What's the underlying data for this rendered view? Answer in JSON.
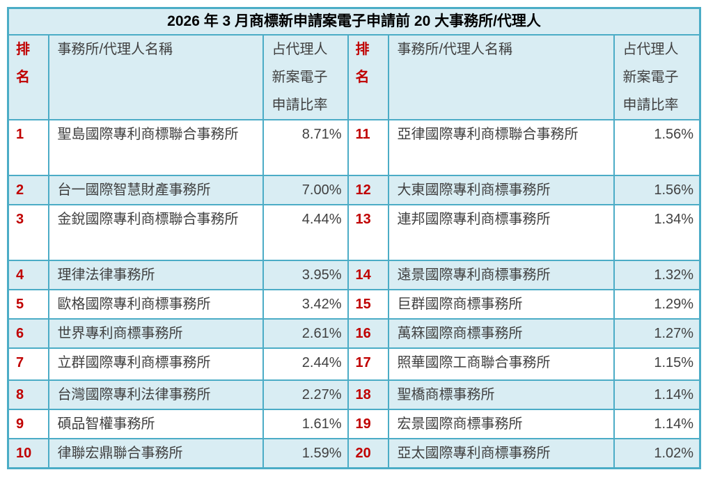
{
  "title": "2026 年 3 月商標新申請案電子申請前 20 大事務所/代理人",
  "header": {
    "rank": "排\n名",
    "name": "事務所/代理人名稱",
    "ratio": "占代理人\n新案電子\n申請比率"
  },
  "colors": {
    "border_teal": "#4bacc6",
    "band_blue": "#d9edf3",
    "rank_red": "#c00000",
    "body_text": "#404040"
  },
  "rows": [
    {
      "rank": "1",
      "name": "聖島國際專利商標聯合事務所",
      "ratio": "8.71%"
    },
    {
      "rank": "2",
      "name": "台一國際智慧財產事務所",
      "ratio": "7.00%"
    },
    {
      "rank": "3",
      "name": "金銳國際專利商標聯合事務所",
      "ratio": "4.44%"
    },
    {
      "rank": "4",
      "name": "理律法律事務所",
      "ratio": "3.95%"
    },
    {
      "rank": "5",
      "name": "歐格國際專利商標事務所",
      "ratio": "3.42%"
    },
    {
      "rank": "6",
      "name": "世界專利商標事務所",
      "ratio": "2.61%"
    },
    {
      "rank": "7",
      "name": "立群國際專利商標事務所",
      "ratio": "2.44%"
    },
    {
      "rank": "8",
      "name": "台灣國際專利法律事務所",
      "ratio": "2.27%"
    },
    {
      "rank": "9",
      "name": "碩品智權事務所",
      "ratio": "1.61%"
    },
    {
      "rank": "10",
      "name": "律聯宏鼎聯合事務所",
      "ratio": "1.59%"
    },
    {
      "rank": "11",
      "name": "亞律國際專利商標聯合事務所",
      "ratio": "1.56%"
    },
    {
      "rank": "12",
      "name": "大東國際專利商標事務所",
      "ratio": "1.56%"
    },
    {
      "rank": "13",
      "name": "連邦國際專利商標事務所",
      "ratio": "1.34%"
    },
    {
      "rank": "14",
      "name": "遠景國際專利商標事務所",
      "ratio": "1.32%"
    },
    {
      "rank": "15",
      "name": "巨群國際商標事務所",
      "ratio": "1.29%"
    },
    {
      "rank": "16",
      "name": "萬箖國際商標事務所",
      "ratio": "1.27%"
    },
    {
      "rank": "17",
      "name": "照華國際工商聯合事務所",
      "ratio": "1.15%"
    },
    {
      "rank": "18",
      "name": "聖橋商標事務所",
      "ratio": "1.14%"
    },
    {
      "rank": "19",
      "name": "宏景國際商標事務所",
      "ratio": "1.14%"
    },
    {
      "rank": "20",
      "name": "亞太國際專利商標事務所",
      "ratio": "1.02%"
    }
  ]
}
